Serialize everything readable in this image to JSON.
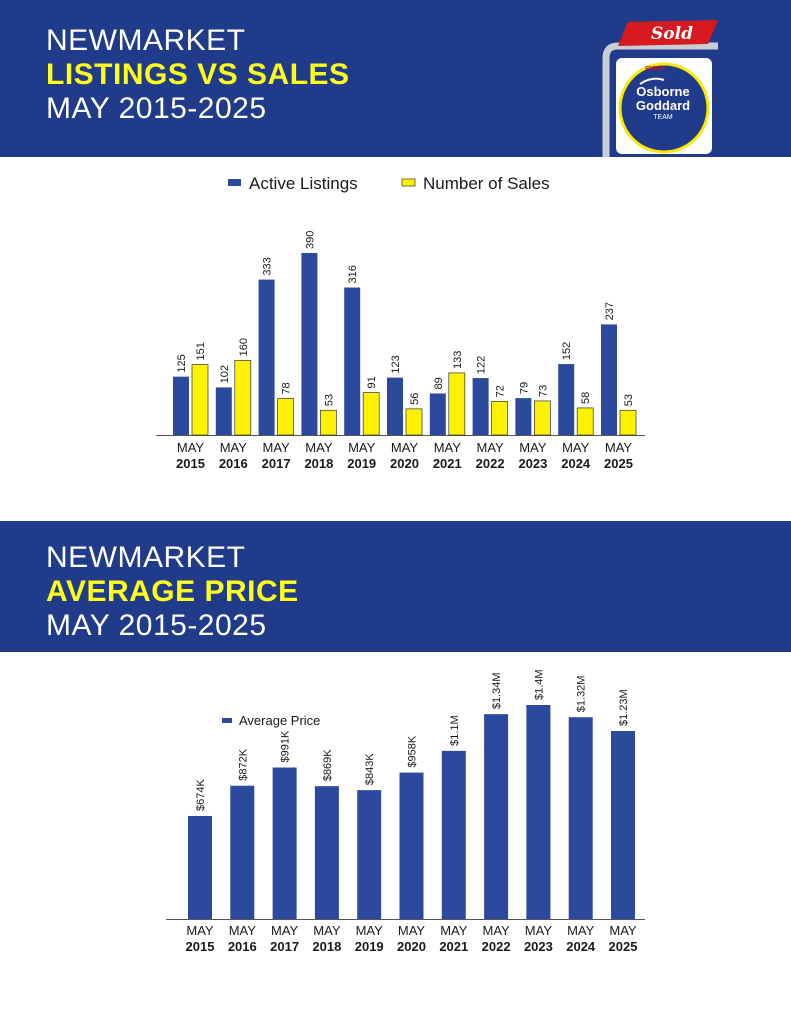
{
  "header_top": {
    "line1": "NEWMARKET",
    "line2": "LISTINGS VS SALES",
    "line3": "MAY 2015-2025"
  },
  "header_bottom": {
    "line1": "NEWMARKET",
    "line2": "AVERAGE PRICE",
    "line3": "MAY 2015-2025"
  },
  "logo": {
    "sign_text": "Sold",
    "name_line1": "Osborne",
    "name_line2": "Goddard",
    "name_line3": "TEAM",
    "badge_text": "RE/MAX"
  },
  "colors": {
    "banner": "#1f3b8a",
    "highlight": "#ffff1a",
    "listings_bar": "#2b4a9e",
    "sales_bar": "#fff200",
    "sold_red": "#d71920"
  },
  "chart_data": [
    {
      "type": "bar",
      "categories": [
        [
          "MAY",
          "2015"
        ],
        [
          "MAY",
          "2016"
        ],
        [
          "MAY",
          "2017"
        ],
        [
          "MAY",
          "2018"
        ],
        [
          "MAY",
          "2019"
        ],
        [
          "MAY",
          "2020"
        ],
        [
          "MAY",
          "2021"
        ],
        [
          "MAY",
          "2022"
        ],
        [
          "MAY",
          "2023"
        ],
        [
          "MAY",
          "2024"
        ],
        [
          "MAY",
          "2025"
        ]
      ],
      "series": [
        {
          "name": "Active Listings",
          "values": [
            125,
            102,
            333,
            390,
            316,
            123,
            89,
            122,
            79,
            152,
            237
          ],
          "labels": [
            "125",
            "102",
            "333",
            "390",
            "316",
            "123",
            "89",
            "122",
            "79",
            "152",
            "237"
          ]
        },
        {
          "name": "Number of Sales",
          "values": [
            151,
            160,
            78,
            53,
            91,
            56,
            133,
            72,
            73,
            58,
            53
          ],
          "labels": [
            "151",
            "160",
            "78",
            "53",
            "91",
            "56",
            "133",
            "72",
            "73",
            "58",
            "53"
          ]
        }
      ],
      "legend": "top-center",
      "grid": false
    },
    {
      "type": "bar",
      "categories": [
        [
          "MAY",
          "2015"
        ],
        [
          "MAY",
          "2016"
        ],
        [
          "MAY",
          "2017"
        ],
        [
          "MAY",
          "2018"
        ],
        [
          "MAY",
          "2019"
        ],
        [
          "MAY",
          "2020"
        ],
        [
          "MAY",
          "2021"
        ],
        [
          "MAY",
          "2022"
        ],
        [
          "MAY",
          "2023"
        ],
        [
          "MAY",
          "2024"
        ],
        [
          "MAY",
          "2025"
        ]
      ],
      "series": [
        {
          "name": "Average Price",
          "values": [
            674000,
            872000,
            991000,
            869000,
            843000,
            958000,
            1100000,
            1340000,
            1400000,
            1320000,
            1230000
          ],
          "labels": [
            "$674K",
            "$872K",
            "$991K",
            "$869K",
            "$843K",
            "$958K",
            "$1.1M",
            "$1.34M",
            "$1.4M",
            "$1.32M",
            "$1.23M"
          ]
        }
      ],
      "legend": "top-left",
      "grid": false
    }
  ]
}
